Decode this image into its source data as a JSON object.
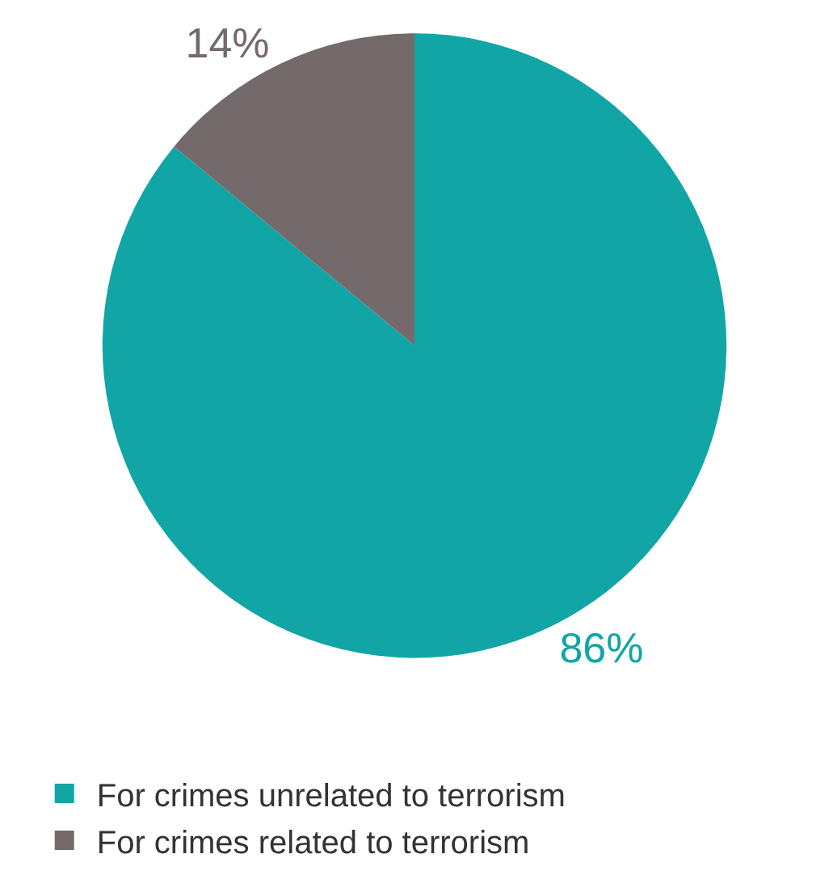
{
  "chart_data": {
    "type": "pie",
    "categories": [
      "For crimes unrelated to terrorism",
      "For crimes related to terrorism"
    ],
    "values": [
      86,
      14
    ],
    "colors": [
      "#12a5a5",
      "#756a6b"
    ],
    "value_labels": [
      "86%",
      "14%"
    ],
    "legend": "bottom"
  }
}
